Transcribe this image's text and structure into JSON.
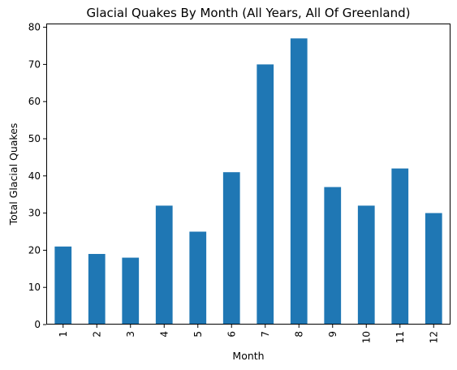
{
  "chart_data": {
    "type": "bar",
    "title": "Glacial Quakes By Month (All Years, All Of Greenland)",
    "xlabel": "Month",
    "ylabel": "Total Glacial Quakes",
    "categories": [
      "1",
      "2",
      "3",
      "4",
      "5",
      "6",
      "7",
      "8",
      "9",
      "10",
      "11",
      "12"
    ],
    "values": [
      21,
      19,
      18,
      32,
      25,
      41,
      70,
      77,
      37,
      32,
      42,
      30
    ],
    "ylim": [
      0,
      81
    ],
    "yticks": [
      0,
      10,
      20,
      30,
      40,
      50,
      60,
      70,
      80
    ],
    "grid": false,
    "legend": "none",
    "bar_color": "#1f77b4",
    "x_tick_rotation": 90
  }
}
